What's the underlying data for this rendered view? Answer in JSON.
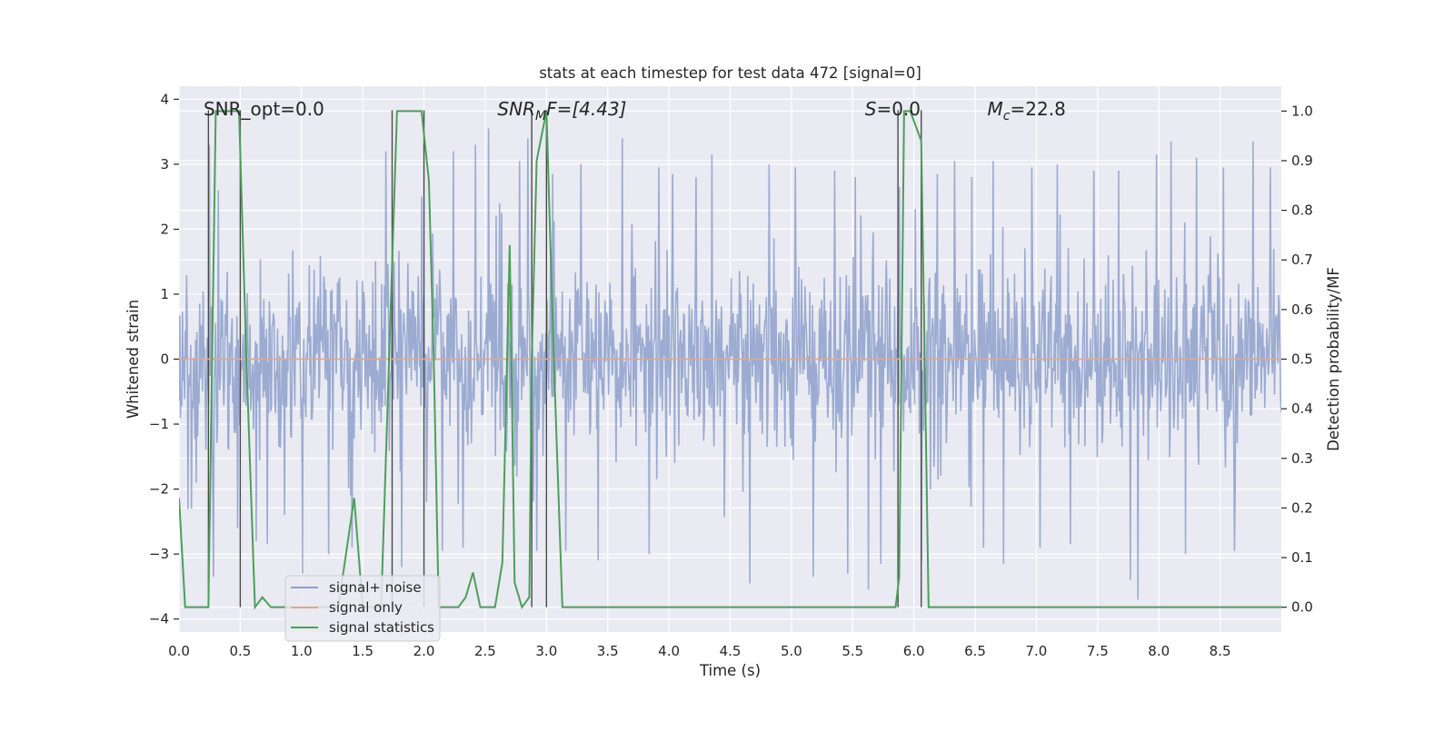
{
  "chart_data": {
    "type": "line",
    "title": "stats at each timestep for test data 472 [signal=0]",
    "xlabel": "Time (s)",
    "ylabel_left": "Whitened strain",
    "ylabel_right": "Detection probability/MF",
    "xlim": [
      0.0,
      9.0
    ],
    "ylim_left": [
      -4.2,
      4.2
    ],
    "ylim_right": [
      -0.05,
      1.05
    ],
    "x_ticks": [
      "0.0",
      "0.5",
      "1.0",
      "1.5",
      "2.0",
      "2.5",
      "3.0",
      "3.5",
      "4.0",
      "4.5",
      "5.0",
      "5.5",
      "6.0",
      "6.5",
      "7.0",
      "7.5",
      "8.0",
      "8.5"
    ],
    "y_left_ticks": [
      "4",
      "3",
      "2",
      "1",
      "0",
      "−1",
      "−2",
      "−3",
      "−4"
    ],
    "y_right_ticks": [
      "1.0",
      "0.9",
      "0.8",
      "0.7",
      "0.6",
      "0.5",
      "0.4",
      "0.3",
      "0.2",
      "0.1",
      "0.0"
    ],
    "grid": true,
    "legend_position": "lower-left",
    "annotations": [
      {
        "text": "SNR_opt=0.0",
        "x": 0.2,
        "y": 3.85
      },
      {
        "main": "SNR",
        "sub": "M",
        "rest": "F=[4.43]",
        "x": 2.6,
        "y": 3.85
      },
      {
        "main": "S",
        "rest": "=0.0",
        "x": 5.6,
        "y": 3.85
      },
      {
        "main": "M",
        "sub": "c",
        "rest": "=22.8",
        "x": 6.6,
        "y": 3.85
      }
    ],
    "vertical_markers": [
      0.24,
      0.5,
      1.74,
      2.0,
      2.88,
      3.0,
      5.87,
      6.06
    ],
    "series": [
      {
        "name": "signal+ noise",
        "color": "#8da0cb",
        "axis": "left",
        "typical_band": [
          -1.7,
          1.7
        ],
        "spikes": [
          [
            0.1,
            -2.3
          ],
          [
            0.14,
            -1.9
          ],
          [
            0.25,
            3.3
          ],
          [
            0.28,
            -3.35
          ],
          [
            0.32,
            2.6
          ],
          [
            0.48,
            -2.6
          ],
          [
            0.63,
            -2.8
          ],
          [
            0.72,
            -2.85
          ],
          [
            0.86,
            -2.4
          ],
          [
            1.01,
            -3.3
          ],
          [
            1.22,
            -3.0
          ],
          [
            1.41,
            -2.9
          ],
          [
            1.69,
            3.2
          ],
          [
            1.82,
            -3.2
          ],
          [
            1.98,
            2.5
          ],
          [
            2.02,
            -2.2
          ],
          [
            2.15,
            -2.95
          ],
          [
            2.24,
            3.2
          ],
          [
            2.32,
            -2.9
          ],
          [
            2.42,
            3.3
          ],
          [
            2.53,
            3.55
          ],
          [
            2.62,
            2.4
          ],
          [
            2.78,
            3.05
          ],
          [
            2.85,
            3.4
          ],
          [
            2.92,
            -2.95
          ],
          [
            3.05,
            2.85
          ],
          [
            3.16,
            -2.95
          ],
          [
            3.28,
            3.0
          ],
          [
            3.42,
            -3.1
          ],
          [
            3.62,
            3.4
          ],
          [
            3.84,
            -3.0
          ],
          [
            3.92,
            2.95
          ],
          [
            4.03,
            2.85
          ],
          [
            4.22,
            2.8
          ],
          [
            4.35,
            3.15
          ],
          [
            4.66,
            -3.45
          ],
          [
            4.82,
            3.0
          ],
          [
            5.03,
            2.95
          ],
          [
            5.18,
            -3.35
          ],
          [
            5.35,
            2.9
          ],
          [
            5.46,
            -3.3
          ],
          [
            5.52,
            2.8
          ],
          [
            5.63,
            -3.55
          ],
          [
            5.73,
            -3.15
          ],
          [
            5.88,
            2.65
          ],
          [
            6.06,
            -3.1
          ],
          [
            6.19,
            2.85
          ],
          [
            6.33,
            3.05
          ],
          [
            6.47,
            2.8
          ],
          [
            6.57,
            -2.9
          ],
          [
            6.65,
            3.05
          ],
          [
            6.73,
            -3.15
          ],
          [
            6.96,
            2.95
          ],
          [
            7.03,
            -2.9
          ],
          [
            7.17,
            3.0
          ],
          [
            7.28,
            -2.85
          ],
          [
            7.47,
            2.9
          ],
          [
            7.67,
            2.9
          ],
          [
            7.77,
            -3.4
          ],
          [
            7.83,
            -3.7
          ],
          [
            7.98,
            3.15
          ],
          [
            8.1,
            3.35
          ],
          [
            8.22,
            -3.0
          ],
          [
            8.31,
            3.1
          ],
          [
            8.53,
            2.95
          ],
          [
            8.62,
            -2.95
          ],
          [
            8.77,
            3.35
          ],
          [
            8.91,
            2.95
          ]
        ]
      },
      {
        "name": "signal only",
        "color": "#e5a68a",
        "axis": "left",
        "x": [
          0.0,
          9.0
        ],
        "y": [
          0.0,
          0.0
        ]
      },
      {
        "name": "signal statistics",
        "color": "#4c9f5a",
        "axis": "right",
        "x": [
          0.0,
          0.05,
          0.1,
          0.24,
          0.3,
          0.34,
          0.49,
          0.55,
          0.62,
          0.68,
          0.75,
          0.82,
          1.3,
          1.43,
          1.5,
          1.65,
          1.78,
          1.82,
          1.98,
          2.04,
          2.08,
          2.12,
          2.15,
          2.22,
          2.28,
          2.34,
          2.4,
          2.46,
          2.52,
          2.58,
          2.64,
          2.7,
          2.74,
          2.8,
          2.86,
          2.88,
          2.92,
          3.0,
          3.06,
          3.13,
          3.2,
          4.0,
          4.5,
          5.85,
          5.88,
          5.92,
          5.97,
          6.06,
          6.12,
          9.0
        ],
        "y": [
          0.22,
          0.0,
          0.0,
          0.0,
          1.0,
          1.0,
          1.0,
          0.5,
          0.0,
          0.02,
          0.0,
          0.0,
          0.0,
          0.22,
          0.0,
          0.0,
          1.0,
          1.0,
          1.0,
          0.86,
          0.5,
          0.0,
          0.0,
          0.0,
          0.0,
          0.02,
          0.07,
          0.0,
          0.0,
          0.0,
          0.09,
          0.73,
          0.05,
          0.0,
          0.02,
          0.5,
          0.9,
          1.0,
          0.5,
          0.0,
          0.0,
          0.0,
          0.0,
          0.0,
          0.06,
          1.0,
          1.0,
          0.94,
          0.0,
          0.0
        ]
      }
    ]
  }
}
